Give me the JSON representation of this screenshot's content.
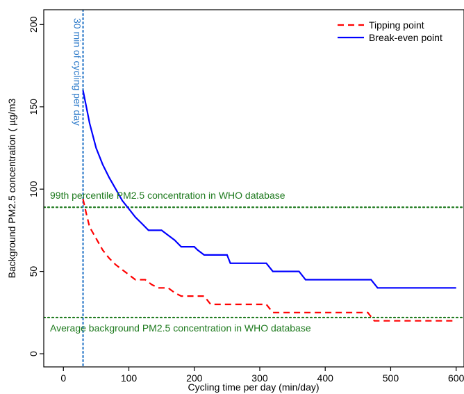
{
  "chart_data": {
    "type": "line",
    "xlabel": "Cycling time per day (min/day)",
    "ylabel": "Background PM2.5 concentration ( µg/m3",
    "xlim": [
      -30,
      612
    ],
    "ylim": [
      -8,
      209
    ],
    "xticks": [
      0,
      100,
      200,
      300,
      400,
      500,
      600
    ],
    "yticks": [
      0,
      50,
      100,
      150,
      200
    ],
    "grid": false,
    "legend_position": "top-right",
    "series": [
      {
        "name": "Tipping point",
        "style": "dashed",
        "color": "#ff0000",
        "points": [
          [
            30,
            94
          ],
          [
            35,
            85
          ],
          [
            40,
            77
          ],
          [
            50,
            70
          ],
          [
            60,
            63
          ],
          [
            70,
            58
          ],
          [
            80,
            54
          ],
          [
            90,
            51
          ],
          [
            100,
            48
          ],
          [
            110,
            45
          ],
          [
            125,
            45
          ],
          [
            135,
            42
          ],
          [
            145,
            40
          ],
          [
            160,
            40
          ],
          [
            170,
            37
          ],
          [
            180,
            35
          ],
          [
            215,
            35
          ],
          [
            225,
            30
          ],
          [
            310,
            30
          ],
          [
            320,
            25
          ],
          [
            465,
            25
          ],
          [
            475,
            20
          ],
          [
            600,
            20
          ]
        ]
      },
      {
        "name": "Break-even point",
        "style": "solid",
        "color": "#0000ff",
        "points": [
          [
            30,
            160
          ],
          [
            35,
            150
          ],
          [
            40,
            140
          ],
          [
            50,
            125
          ],
          [
            60,
            115
          ],
          [
            70,
            107
          ],
          [
            80,
            100
          ],
          [
            90,
            93
          ],
          [
            100,
            88
          ],
          [
            110,
            83
          ],
          [
            120,
            79
          ],
          [
            130,
            75
          ],
          [
            150,
            75
          ],
          [
            160,
            72
          ],
          [
            170,
            69
          ],
          [
            180,
            65
          ],
          [
            200,
            65
          ],
          [
            205,
            63
          ],
          [
            215,
            60
          ],
          [
            250,
            60
          ],
          [
            255,
            55
          ],
          [
            310,
            55
          ],
          [
            320,
            50
          ],
          [
            360,
            50
          ],
          [
            370,
            45
          ],
          [
            470,
            45
          ],
          [
            480,
            40
          ],
          [
            600,
            40
          ]
        ]
      }
    ],
    "reference_lines": [
      {
        "axis": "y",
        "value": 89,
        "color": "#1e7a1e",
        "style": "dotted",
        "label": "99th percentile PM2.5 concentration in WHO database"
      },
      {
        "axis": "y",
        "value": 22,
        "color": "#1e7a1e",
        "style": "dotted",
        "label": "Average background PM2.5 concentration in WHO database"
      },
      {
        "axis": "x",
        "value": 30,
        "color": "#2b79c9",
        "style": "dotted",
        "label": "30 min of cycling per day"
      }
    ]
  }
}
